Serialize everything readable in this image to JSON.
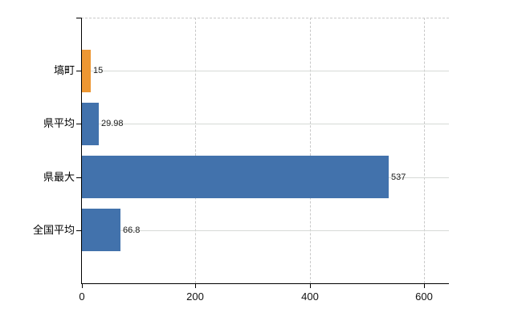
{
  "chart_data": {
    "type": "bar",
    "orientation": "horizontal",
    "title": "",
    "categories": [
      "塙町",
      "県平均",
      "県最大",
      "全国平均"
    ],
    "values": [
      15,
      29.98,
      537,
      66.8
    ],
    "value_labels": [
      "15",
      "29.98",
      "537",
      "66.8"
    ],
    "bar_colors": [
      "#ed9733",
      "#4272ac",
      "#4272ac",
      "#4272ac"
    ],
    "x_tick_labels": [
      "0",
      "200",
      "400",
      "600"
    ],
    "x_tick_values": [
      0,
      200,
      400,
      600
    ],
    "xlim": [
      0,
      644
    ],
    "grid": true,
    "legend": "none",
    "series": [
      {
        "name": "",
        "values": [
          15,
          29.98,
          537,
          66.8
        ]
      }
    ]
  },
  "colors": {
    "background": "#ffffff",
    "bar_orange": "#ed9733",
    "bar_blue": "#4272ac",
    "axis": "#000000",
    "h_gridline": "#d6dad6",
    "v_gridline_dashed": "#c9c9c9",
    "category_text": "#000000",
    "value_text": "#1a1a1a",
    "tick_text": "#111111"
  }
}
